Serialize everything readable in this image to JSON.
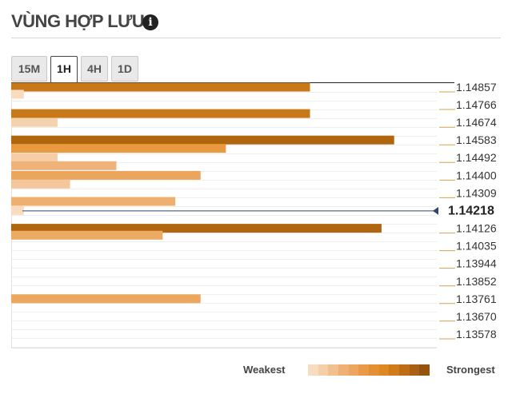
{
  "header": {
    "title": "VÙNG HỢP LƯU",
    "info_icon": "info-icon"
  },
  "tabs": [
    {
      "label": "15M",
      "active": false
    },
    {
      "label": "1H",
      "active": true
    },
    {
      "label": "4H",
      "active": false
    },
    {
      "label": "1D",
      "active": false
    }
  ],
  "legend": {
    "weak_label": "Weakest",
    "strong_label": "Strongest",
    "colors": [
      "#f8dcc0",
      "#f5cfa8",
      "#f2c08e",
      "#efb173",
      "#eca65e",
      "#e99a49",
      "#e58f34",
      "#e08722",
      "#d07a1a",
      "#bd6d16",
      "#a95f14",
      "#955310"
    ]
  },
  "chart_data": {
    "type": "bar",
    "orientation": "horizontal",
    "x_scale_max": 100,
    "ylim": [
      1.1353,
      1.149
    ],
    "ticks": [
      "1.14857",
      "1.14766",
      "1.14674",
      "1.14583",
      "1.14492",
      "1.14400",
      "1.14309",
      "1.14218",
      "1.14126",
      "1.14035",
      "1.13944",
      "1.13852",
      "1.13761",
      "1.13670",
      "1.13578"
    ],
    "current_price": "1.14218",
    "bars": [
      {
        "price": 1.14857,
        "value": 71,
        "color": "#c8781a"
      },
      {
        "price": 1.1482,
        "value": 3,
        "color": "#f8dcc0"
      },
      {
        "price": 1.1472,
        "value": 71,
        "color": "#c8781a"
      },
      {
        "price": 1.14674,
        "value": 11,
        "color": "#f5d2ae"
      },
      {
        "price": 1.14583,
        "value": 91,
        "color": "#b0650f"
      },
      {
        "price": 1.1454,
        "value": 51,
        "color": "#e99a3e"
      },
      {
        "price": 1.14492,
        "value": 11,
        "color": "#f5cda6"
      },
      {
        "price": 1.1445,
        "value": 25,
        "color": "#efb37a"
      },
      {
        "price": 1.144,
        "value": 45,
        "color": "#eba55c"
      },
      {
        "price": 1.14355,
        "value": 14,
        "color": "#f3c69b"
      },
      {
        "price": 1.14265,
        "value": 39,
        "color": "#efb06f"
      },
      {
        "price": 1.14218,
        "value": 3,
        "color": "#f8dcc0"
      },
      {
        "price": 1.14126,
        "value": 88,
        "color": "#b0650f"
      },
      {
        "price": 1.1409,
        "value": 36,
        "color": "#ecaa63"
      },
      {
        "price": 1.13761,
        "value": 45,
        "color": "#eca65e"
      }
    ]
  }
}
